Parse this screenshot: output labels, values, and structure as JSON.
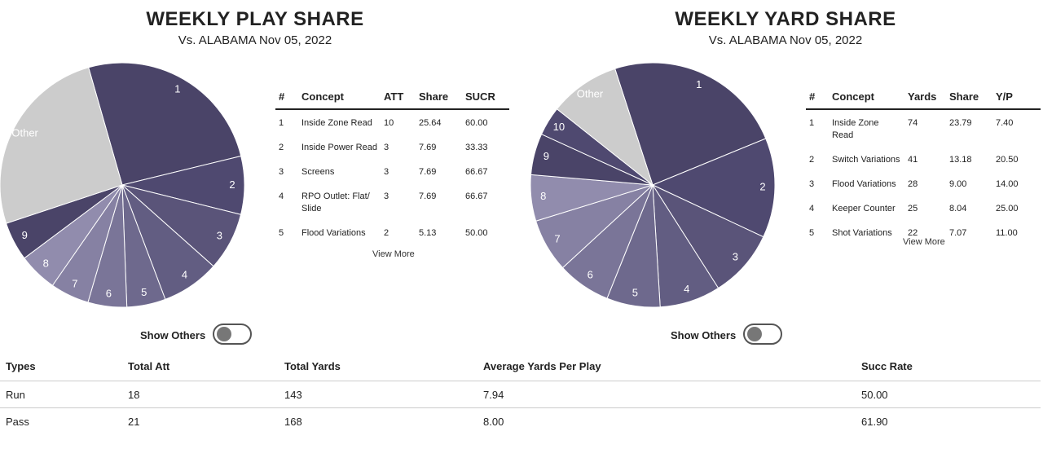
{
  "play_share": {
    "title": "WEEKLY PLAY SHARE",
    "subtitle": "Vs. ALABAMA Nov 05, 2022",
    "table": {
      "headers": [
        "#",
        "Concept",
        "ATT",
        "Share",
        "SUCR"
      ],
      "rows": [
        [
          "1",
          "Inside Zone Read",
          "10",
          "25.64",
          "60.00"
        ],
        [
          "2",
          "Inside Power Read",
          "3",
          "7.69",
          "33.33"
        ],
        [
          "3",
          "Screens",
          "3",
          "7.69",
          "66.67"
        ],
        [
          "4",
          "RPO Outlet: Flat/ Slide",
          "3",
          "7.69",
          "66.67"
        ],
        [
          "5",
          "Flood Variations",
          "2",
          "5.13",
          "50.00"
        ]
      ]
    },
    "view_more": "View More",
    "show_others_label": "Show Others",
    "show_others_on": false
  },
  "yard_share": {
    "title": "WEEKLY YARD SHARE",
    "subtitle": "Vs. ALABAMA Nov 05, 2022",
    "table": {
      "headers": [
        "#",
        "Concept",
        "Yards",
        "Share",
        "Y/P"
      ],
      "rows": [
        [
          "1",
          "Inside Zone Read",
          "74",
          "23.79",
          "7.40"
        ],
        [
          "2",
          "Switch Variations",
          "41",
          "13.18",
          "20.50"
        ],
        [
          "3",
          "Flood Variations",
          "28",
          "9.00",
          "14.00"
        ],
        [
          "4",
          "Keeper Counter",
          "25",
          "8.04",
          "25.00"
        ],
        [
          "5",
          "Shot Variations",
          "22",
          "7.07",
          "11.00"
        ]
      ]
    },
    "view_more": "View More",
    "show_others_label": "Show Others",
    "show_others_on": false
  },
  "summary": {
    "headers": [
      "Types",
      "Total Att",
      "Total Yards",
      "Average Yards Per Play",
      "Succ Rate"
    ],
    "rows": [
      [
        "Run",
        "18",
        "143",
        "7.94",
        "50.00"
      ],
      [
        "Pass",
        "21",
        "168",
        "8.00",
        "61.90"
      ]
    ]
  },
  "chart_data": [
    {
      "type": "pie",
      "title": "WEEKLY PLAY SHARE",
      "subtitle": "Vs. ALABAMA Nov 05, 2022",
      "start_angle_deg": 106,
      "slices": [
        {
          "label": "1",
          "value": 25.64,
          "color": "#4a4468"
        },
        {
          "label": "2",
          "value": 7.69,
          "color": "#4f4970"
        },
        {
          "label": "3",
          "value": 7.69,
          "color": "#5a5479"
        },
        {
          "label": "4",
          "value": 7.69,
          "color": "#625d82"
        },
        {
          "label": "5",
          "value": 5.13,
          "color": "#6e698d"
        },
        {
          "label": "6",
          "value": 5.13,
          "color": "#7a7598"
        },
        {
          "label": "7",
          "value": 5.13,
          "color": "#8681a3"
        },
        {
          "label": "8",
          "value": 5.13,
          "color": "#918cad"
        },
        {
          "label": "9",
          "value": 5.13,
          "color": "#4a4468"
        },
        {
          "label": "Other",
          "value": 25.64,
          "color": "#cccccc"
        }
      ]
    },
    {
      "type": "pie",
      "title": "WEEKLY YARD SHARE",
      "subtitle": "Vs. ALABAMA Nov 05, 2022",
      "start_angle_deg": 108,
      "slices": [
        {
          "label": "1",
          "value": 23.79,
          "color": "#4a4468"
        },
        {
          "label": "2",
          "value": 13.18,
          "color": "#4f4970"
        },
        {
          "label": "3",
          "value": 9.0,
          "color": "#5a5479"
        },
        {
          "label": "4",
          "value": 8.04,
          "color": "#625d82"
        },
        {
          "label": "5",
          "value": 7.07,
          "color": "#6e698d"
        },
        {
          "label": "6",
          "value": 7.07,
          "color": "#7a7598"
        },
        {
          "label": "7",
          "value": 7.07,
          "color": "#8681a3"
        },
        {
          "label": "8",
          "value": 6.11,
          "color": "#918cad"
        },
        {
          "label": "9",
          "value": 5.47,
          "color": "#4a4468"
        },
        {
          "label": "10",
          "value": 3.86,
          "color": "#4f4970"
        },
        {
          "label": "Other",
          "value": 9.32,
          "color": "#cccccc"
        }
      ]
    }
  ]
}
